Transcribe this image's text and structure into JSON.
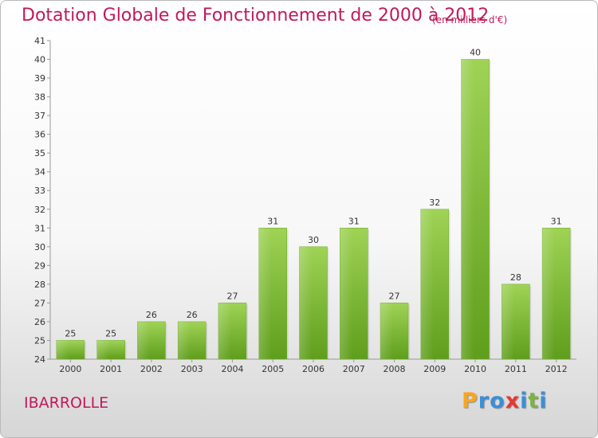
{
  "title": "Dotation Globale de Fonctionnement de 2000 à 2012",
  "unit": "(en milliers d'€)",
  "commune": "IBARROLLE",
  "logo": {
    "text": "Proxiti",
    "letters": [
      {
        "ch": "P",
        "color": "#f5a623"
      },
      {
        "ch": "r",
        "color": "#3a8fd8"
      },
      {
        "ch": "o",
        "color": "#3a8fd8"
      },
      {
        "ch": "x",
        "color": "#e53935"
      },
      {
        "ch": "i",
        "color": "#3a8fd8"
      },
      {
        "ch": "t",
        "color": "#7cb342"
      },
      {
        "ch": "i",
        "color": "#3a8fd8"
      }
    ]
  },
  "colors": {
    "bar_top": "#9fd356",
    "bar_bottom": "#5f9e1c",
    "text_accent": "#c2185b"
  },
  "chart_data": {
    "type": "bar",
    "title": "Dotation Globale de Fonctionnement de 2000 à 2012",
    "ylabel": "(en milliers d'€)",
    "xlabel": "",
    "categories": [
      "2000",
      "2001",
      "2002",
      "2003",
      "2004",
      "2005",
      "2006",
      "2007",
      "2008",
      "2009",
      "2010",
      "2011",
      "2012"
    ],
    "values": [
      25,
      25,
      26,
      26,
      27,
      31,
      30,
      31,
      27,
      32,
      40,
      28,
      31
    ],
    "ylim": [
      24,
      41
    ],
    "yticks": [
      24,
      25,
      26,
      27,
      28,
      29,
      30,
      31,
      32,
      33,
      34,
      35,
      36,
      37,
      38,
      39,
      40,
      41
    ],
    "grid": false,
    "legend": "none"
  }
}
